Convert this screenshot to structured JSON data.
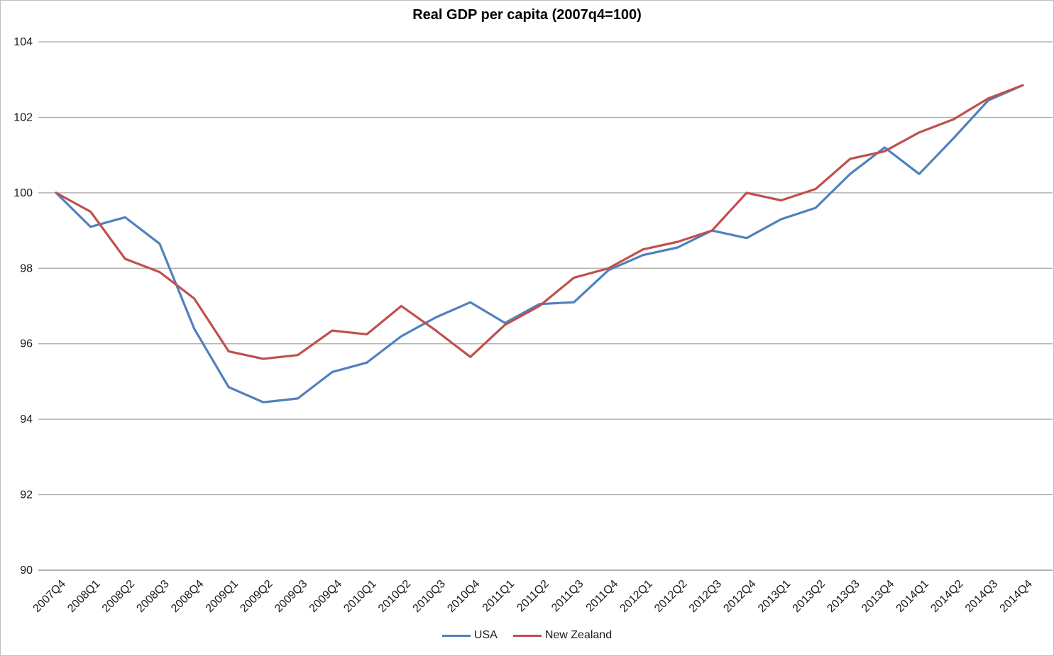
{
  "chart_data": {
    "type": "line",
    "title": "Real GDP per capita (2007q4=100)",
    "categories": [
      "2007Q4",
      "2008Q1",
      "2008Q2",
      "2008Q3",
      "2008Q4",
      "2009Q1",
      "2009Q2",
      "2009Q3",
      "2009Q4",
      "2010Q1",
      "2010Q2",
      "2010Q3",
      "2010Q4",
      "2011Q1",
      "2011Q2",
      "2011Q3",
      "2011Q4",
      "2012Q1",
      "2012Q2",
      "2012Q3",
      "2012Q4",
      "2013Q1",
      "2013Q2",
      "2013Q3",
      "2013Q4",
      "2014Q1",
      "2014Q2",
      "2014Q3",
      "2014Q4"
    ],
    "series": [
      {
        "name": "USA",
        "color": "#4F81BD",
        "values": [
          100,
          99.1,
          99.35,
          98.65,
          96.4,
          94.85,
          94.45,
          94.55,
          95.25,
          95.5,
          96.2,
          96.7,
          97.1,
          96.55,
          97.05,
          97.1,
          97.95,
          98.35,
          98.55,
          99.0,
          98.8,
          99.3,
          99.6,
          100.5,
          101.2,
          100.5,
          101.45,
          102.45,
          102.85
        ]
      },
      {
        "name": "New Zealand",
        "color": "#C0504D",
        "values": [
          100,
          99.5,
          98.25,
          97.9,
          97.2,
          95.8,
          95.6,
          95.7,
          96.35,
          96.25,
          97.0,
          96.35,
          95.65,
          96.5,
          97.0,
          97.75,
          98.0,
          98.5,
          98.7,
          99.0,
          100.0,
          99.8,
          100.1,
          100.9,
          101.1,
          101.6,
          101.95,
          102.5,
          102.85
        ]
      }
    ],
    "ylim": [
      90,
      104
    ],
    "y_ticks": [
      90,
      92,
      94,
      96,
      98,
      100,
      102,
      104
    ],
    "xlabel": "",
    "ylabel": "",
    "grid": "horizontal",
    "legend_position": "bottom-center",
    "grid_color": "#A6A6A6",
    "axis_color": "#808080",
    "tick_label_color": "#1a1a1a"
  }
}
